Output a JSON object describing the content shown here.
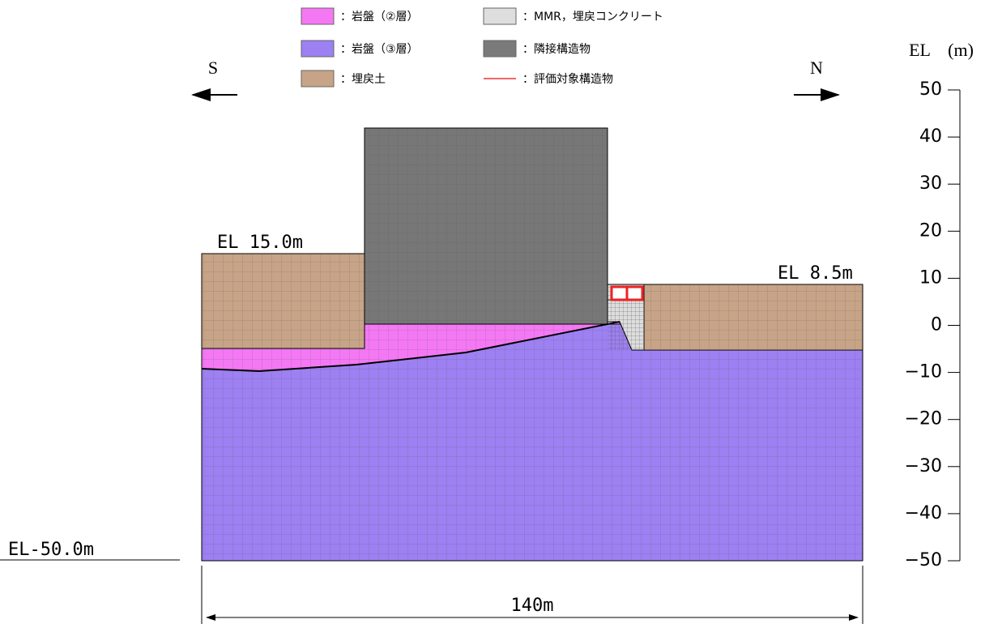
{
  "legend": [
    {
      "label": "：岩盤（②層）"
    },
    {
      "label": "：岩盤（③層）"
    },
    {
      "label": "：埋戻土"
    },
    {
      "label": "：MMR，埋戻コンクリート"
    },
    {
      "label": "：隣接構造物"
    },
    {
      "label": "：評価対象構造物"
    }
  ],
  "directions": {
    "left": "S",
    "right": "N"
  },
  "labels": {
    "left_level": "EL 15.0m",
    "right_level": "EL 8.5m",
    "bottom_level": "EL-50.0m",
    "width": "140m"
  },
  "axis": {
    "title": "EL　(m)",
    "range": [
      -50,
      50
    ],
    "ticks": [
      {
        "value": 50,
        "label": "50"
      },
      {
        "value": 40,
        "label": "40"
      },
      {
        "value": 30,
        "label": "30"
      },
      {
        "value": 20,
        "label": "20"
      },
      {
        "value": 10,
        "label": "10"
      },
      {
        "value": 0,
        "label": "0"
      },
      {
        "value": -10,
        "label": "−10"
      },
      {
        "value": -20,
        "label": "−20"
      },
      {
        "value": -30,
        "label": "−30"
      },
      {
        "value": -40,
        "label": "−40"
      },
      {
        "value": -50,
        "label": "−50"
      }
    ]
  }
}
